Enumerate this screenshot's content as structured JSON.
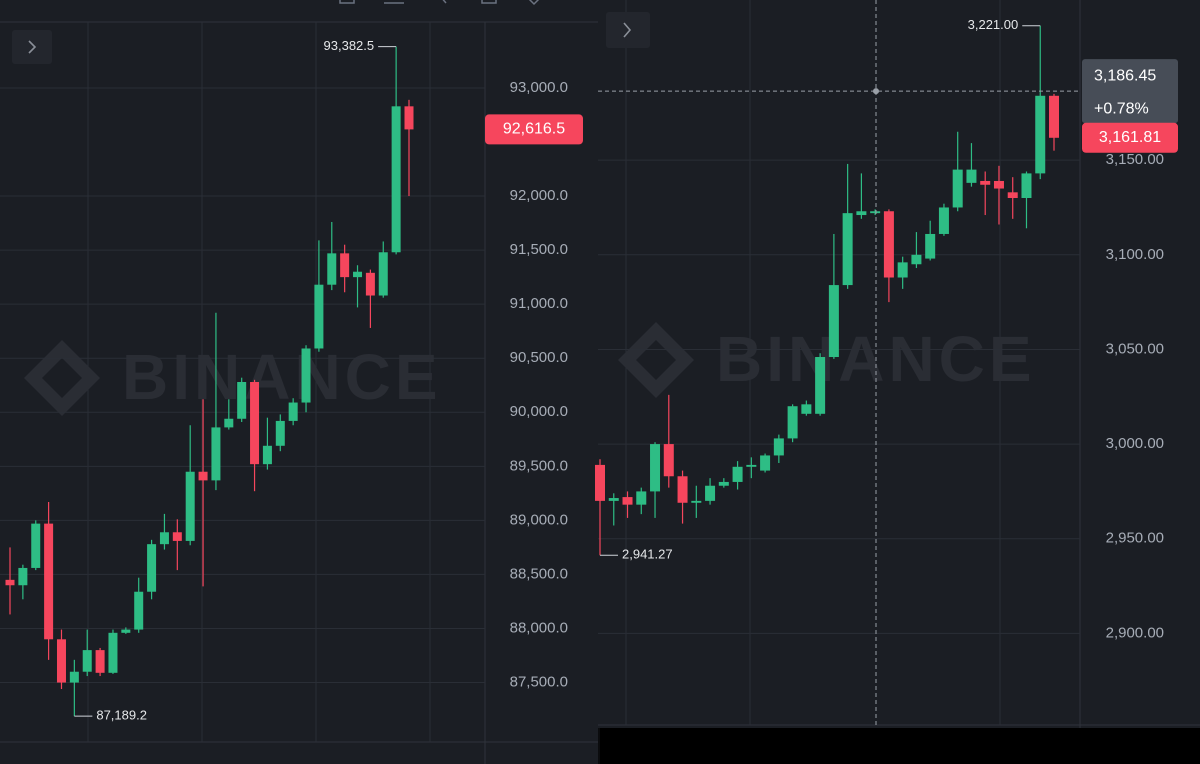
{
  "chart_data": [
    {
      "type": "candlestick",
      "watermark": "BINANCE",
      "high_label": "93,382.5",
      "low_label": "87,189.2",
      "last_price_label": "92,616.5",
      "up_color": "#2ebd85",
      "down_color": "#f6465d",
      "grid": true,
      "ylim": [
        86950,
        93610
      ],
      "yticks": [
        {
          "value": 87500,
          "label": "87,500.0"
        },
        {
          "value": 88000,
          "label": "88,000.0"
        },
        {
          "value": 88500,
          "label": "88,500.0"
        },
        {
          "value": 89000,
          "label": "89,000.0"
        },
        {
          "value": 89500,
          "label": "89,500.0"
        },
        {
          "value": 90000,
          "label": "90,000.0"
        },
        {
          "value": 90500,
          "label": "90,500.0"
        },
        {
          "value": 91000,
          "label": "91,000.0"
        },
        {
          "value": 91500,
          "label": "91,500.0"
        },
        {
          "value": 92000,
          "label": "92,000.0"
        },
        {
          "value": 93000,
          "label": "93,000.0"
        }
      ],
      "ohlc": [
        [
          88450,
          88750,
          88130,
          88400
        ],
        [
          88400,
          88590,
          88270,
          88560
        ],
        [
          88560,
          89000,
          88540,
          88970
        ],
        [
          88970,
          89170,
          87710,
          87900
        ],
        [
          87900,
          87990,
          87440,
          87500
        ],
        [
          87500,
          87710,
          87189.2,
          87600
        ],
        [
          87600,
          87990,
          87560,
          87800
        ],
        [
          87800,
          87820,
          87560,
          87590
        ],
        [
          87590,
          87990,
          87580,
          87960
        ],
        [
          87960,
          88010,
          87950,
          87990
        ],
        [
          87990,
          88470,
          87960,
          88340
        ],
        [
          88340,
          88820,
          88270,
          88780
        ],
        [
          88780,
          89060,
          88730,
          88890
        ],
        [
          88890,
          89010,
          88540,
          88810
        ],
        [
          88810,
          89880,
          88770,
          89450
        ],
        [
          89450,
          90120,
          88390,
          89370
        ],
        [
          89370,
          90920,
          89280,
          89860
        ],
        [
          89860,
          90120,
          89840,
          89940
        ],
        [
          89940,
          90320,
          89910,
          90280
        ],
        [
          90280,
          90300,
          89270,
          89520
        ],
        [
          89520,
          89950,
          89470,
          89690
        ],
        [
          89690,
          89980,
          89640,
          89920
        ],
        [
          89920,
          90130,
          89880,
          90090
        ],
        [
          90090,
          90620,
          90000,
          90590
        ],
        [
          90590,
          91590,
          90560,
          91180
        ],
        [
          91180,
          91760,
          91130,
          91470
        ],
        [
          91470,
          91550,
          91110,
          91250
        ],
        [
          91250,
          91360,
          90970,
          91300
        ],
        [
          91290,
          91320,
          90780,
          91080
        ],
        [
          91080,
          91580,
          91060,
          91480
        ],
        [
          91480,
          93382.5,
          91460,
          92830
        ],
        [
          92830,
          92890,
          92000,
          92616.5
        ]
      ]
    },
    {
      "type": "candlestick",
      "watermark": "BINANCE",
      "high_label": "3,221.00",
      "low_label": "2,941.27",
      "last_price_label": "3,161.81",
      "crosshair": {
        "value": 3186.45,
        "label": "3,186.45",
        "change": "+0.78%"
      },
      "up_color": "#2ebd85",
      "down_color": "#f6465d",
      "grid": true,
      "ylim": [
        2851.6,
        3234.6
      ],
      "yticks": [
        {
          "value": 2900,
          "label": "2,900.00"
        },
        {
          "value": 2950,
          "label": "2,950.00"
        },
        {
          "value": 3000,
          "label": "3,000.00"
        },
        {
          "value": 3050,
          "label": "3,050.00"
        },
        {
          "value": 3100,
          "label": "3,100.00"
        },
        {
          "value": 3150,
          "label": "3,150.00"
        }
      ],
      "ohlc": [
        [
          2989,
          2992,
          2941.27,
          2970
        ],
        [
          2970,
          2974,
          2957,
          2971.5
        ],
        [
          2972,
          2975,
          2961,
          2968
        ],
        [
          2968,
          2977,
          2963,
          2975
        ],
        [
          2975,
          3001,
          2961,
          3000
        ],
        [
          3000,
          3026,
          2977,
          2983
        ],
        [
          2983,
          2986,
          2958,
          2969
        ],
        [
          2969,
          2978,
          2961,
          2970
        ],
        [
          2970,
          2982,
          2968,
          2978
        ],
        [
          2978,
          2982,
          2977,
          2980
        ],
        [
          2980,
          2991,
          2976,
          2988
        ],
        [
          2988,
          2993,
          2982,
          2989
        ],
        [
          2986,
          2995,
          2985,
          2994
        ],
        [
          2994,
          3005,
          2990,
          3003
        ],
        [
          3003,
          3021,
          3001,
          3020
        ],
        [
          3016,
          3023,
          3015,
          3021
        ],
        [
          3016,
          3048,
          3015,
          3046
        ],
        [
          3046,
          3111,
          3045,
          3084
        ],
        [
          3084,
          3148,
          3082,
          3122
        ],
        [
          3121,
          3143,
          3119,
          3123
        ],
        [
          3122,
          3124,
          3121,
          3123
        ],
        [
          3123,
          3124,
          3075,
          3088
        ],
        [
          3088,
          3099,
          3082,
          3096
        ],
        [
          3095,
          3112,
          3093,
          3100
        ],
        [
          3098,
          3118,
          3097,
          3111
        ],
        [
          3111,
          3127,
          3110,
          3125
        ],
        [
          3125,
          3165,
          3123,
          3145
        ],
        [
          3138,
          3159,
          3136,
          3145
        ],
        [
          3139,
          3144,
          3121,
          3137
        ],
        [
          3139,
          3147,
          3116,
          3135
        ],
        [
          3133,
          3141,
          3119,
          3130
        ],
        [
          3130,
          3144,
          3114,
          3143
        ],
        [
          3143,
          3221,
          3140,
          3184
        ],
        [
          3184,
          3185,
          3155,
          3161.81
        ]
      ]
    }
  ]
}
